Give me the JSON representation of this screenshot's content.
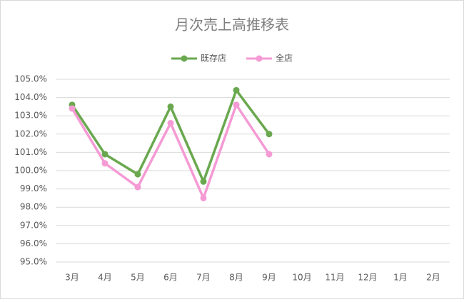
{
  "chart_data": {
    "type": "line",
    "title": "月次売上高推移表",
    "categories": [
      "3月",
      "4月",
      "5月",
      "6月",
      "7月",
      "8月",
      "9月",
      "10月",
      "11月",
      "12月",
      "1月",
      "2月"
    ],
    "series": [
      {
        "name": "既存店",
        "color": "#6aa84f",
        "values": [
          103.6,
          100.9,
          99.8,
          103.5,
          99.4,
          104.4,
          102.0,
          null,
          null,
          null,
          null,
          null
        ]
      },
      {
        "name": "全店",
        "color": "#f59ad4",
        "values": [
          103.4,
          100.4,
          99.1,
          102.6,
          98.5,
          103.6,
          100.9,
          null,
          null,
          null,
          null,
          null
        ]
      }
    ],
    "ylim": [
      95,
      105
    ],
    "yticks": [
      {
        "value": 95,
        "label": "95.0%"
      },
      {
        "value": 96,
        "label": "96.0%"
      },
      {
        "value": 97,
        "label": "97.0%"
      },
      {
        "value": 98,
        "label": "98.0%"
      },
      {
        "value": 99,
        "label": "99.0%"
      },
      {
        "value": 100,
        "label": "100.0%"
      },
      {
        "value": 101,
        "label": "101.0%"
      },
      {
        "value": 102,
        "label": "102.0%"
      },
      {
        "value": 103,
        "label": "103.0%"
      },
      {
        "value": 104,
        "label": "104.0%"
      },
      {
        "value": 105,
        "label": "105.0%"
      }
    ],
    "grid": true,
    "legend": "top"
  }
}
